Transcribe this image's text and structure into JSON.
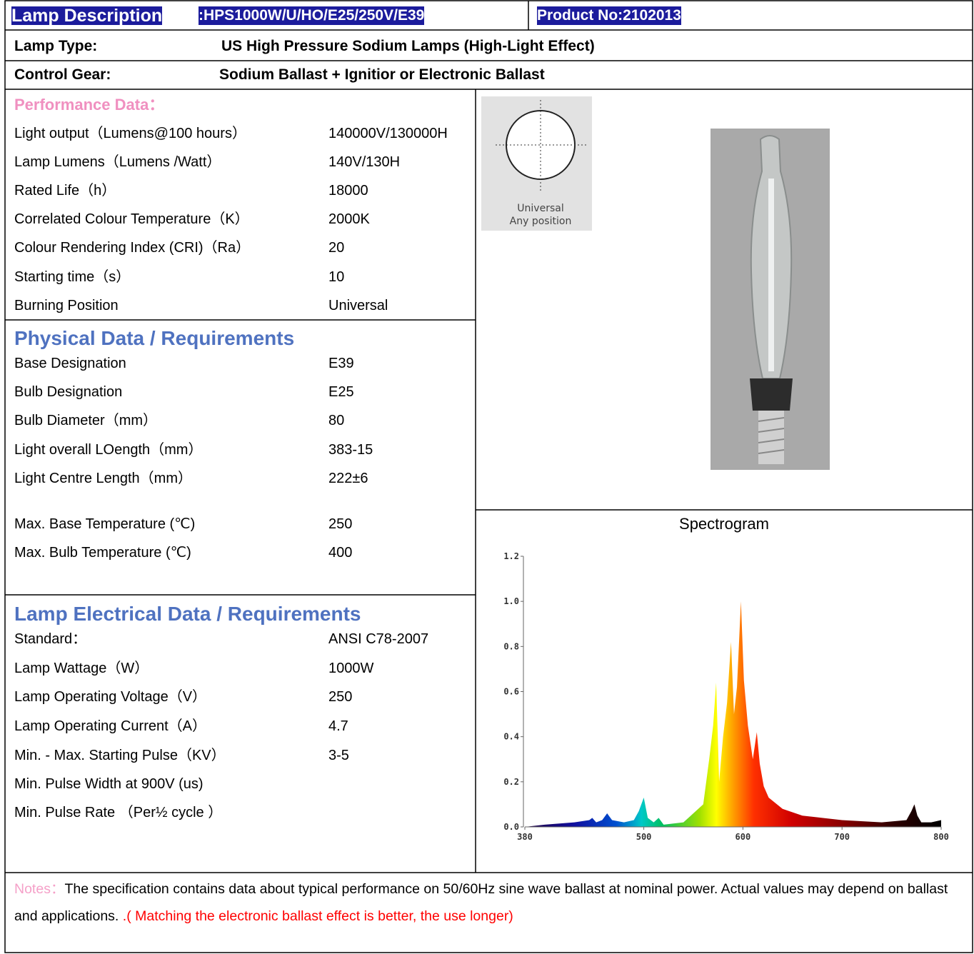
{
  "header": {
    "lamp_description_label": "Lamp Description",
    "lamp_description_value": ":HPS1000W/U/HO/E25/250V/E39",
    "product_no": "Product No:2102013",
    "lamp_type_label": "Lamp Type:",
    "lamp_type_value": "US High Pressure Sodium Lamps (High-Light Effect)",
    "control_gear_label": "Control Gear:",
    "control_gear_value": "Sodium Ballast + Ignitior or Electronic Ballast"
  },
  "performance": {
    "title": "Performance Data：",
    "rows": [
      [
        "Light output（Lumens@100 hours）",
        "140000V/130000H"
      ],
      [
        "Lamp Lumens（Lumens /Watt）",
        "140V/130H"
      ],
      [
        "Rated Life（h）",
        "18000"
      ],
      [
        "Correlated Colour Temperature（K）",
        "2000K"
      ],
      [
        "Colour Rendering Index (CRI)（Ra）",
        "20"
      ],
      [
        "Starting time（s）",
        "10"
      ],
      [
        "Burning Position",
        "Universal"
      ]
    ]
  },
  "physical": {
    "title": "Physical Data / Requirements",
    "rows": [
      [
        "Base Designation",
        "E39"
      ],
      [
        "Bulb Designation",
        "E25"
      ],
      [
        "Bulb Diameter（mm）",
        "80"
      ],
      [
        "Light overall LOength（mm）",
        "383-15"
      ],
      [
        "Light Centre Length（mm）",
        "222±6"
      ],
      [
        "Max. Base Temperature (℃)",
        "250"
      ],
      [
        "Max. Bulb Temperature (℃)",
        "400"
      ]
    ]
  },
  "electrical": {
    "title": "Lamp Electrical Data / Requirements",
    "rows": [
      [
        "Standard：",
        "ANSI C78-2007"
      ],
      [
        "Lamp Wattage（W）",
        "1000W"
      ],
      [
        "Lamp Operating Voltage（V）",
        "250"
      ],
      [
        "Lamp Operating Current（A）",
        "4.7"
      ],
      [
        "Min. - Max. Starting Pulse（KV）",
        "3-5"
      ],
      [
        "Min. Pulse Width at 900V (us)"
      ],
      [
        "Min. Pulse Rate （Per½ cycle ）"
      ]
    ]
  },
  "position_icon": {
    "lines": [
      "Universal",
      "Any position"
    ]
  },
  "chart_data": {
    "type": "area",
    "title": "Spectrogram",
    "x": [
      380,
      400,
      430,
      445,
      448,
      452,
      458,
      463,
      468,
      480,
      490,
      495,
      500,
      504,
      510,
      515,
      520,
      540,
      550,
      560,
      566,
      570,
      573,
      576,
      580,
      584,
      588,
      591,
      594,
      598,
      601,
      605,
      610,
      614,
      617,
      621,
      626,
      640,
      660,
      680,
      700,
      740,
      765,
      770,
      773,
      776,
      780,
      790,
      800
    ],
    "values": [
      0.0,
      0.01,
      0.02,
      0.03,
      0.04,
      0.02,
      0.03,
      0.06,
      0.03,
      0.02,
      0.03,
      0.07,
      0.13,
      0.04,
      0.02,
      0.04,
      0.01,
      0.02,
      0.06,
      0.1,
      0.3,
      0.45,
      0.64,
      0.2,
      0.4,
      0.55,
      0.82,
      0.5,
      0.62,
      1.0,
      0.65,
      0.45,
      0.3,
      0.42,
      0.28,
      0.18,
      0.13,
      0.08,
      0.05,
      0.04,
      0.03,
      0.02,
      0.03,
      0.07,
      0.1,
      0.05,
      0.02,
      0.02,
      0.03
    ],
    "xlim": [
      380,
      800
    ],
    "ylim": [
      0,
      1.2
    ],
    "xticks": [
      380,
      500,
      600,
      700,
      800
    ],
    "yticks": [
      {
        "value": 0,
        "label": "0.0"
      },
      0.2,
      0.4,
      0.6,
      0.8,
      {
        "value": 1,
        "label": "1.0"
      },
      1.2
    ]
  },
  "notes": {
    "label": "Notes：",
    "text": "The specification contains data about typical performance on 50/60Hz sine wave ballast at nominal power. Actual values may depend on ballast and applications. ",
    "highlight": ".( Matching the electronic ballast effect is better, the use longer)"
  }
}
